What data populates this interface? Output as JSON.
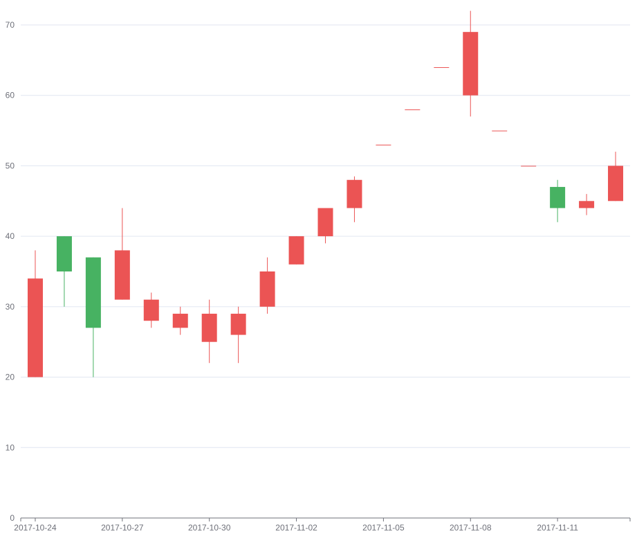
{
  "chart_data": {
    "type": "candlestick",
    "x_tick_labels": [
      "2017-10-24",
      "2017-10-27",
      "2017-10-30",
      "2017-11-02",
      "2017-11-05",
      "2017-11-08",
      "2017-11-11"
    ],
    "y_tick_labels": [
      "0",
      "10",
      "20",
      "30",
      "40",
      "50",
      "60",
      "70"
    ],
    "ylim": [
      0,
      70
    ],
    "grid": true,
    "colors": {
      "up": "#eb5454",
      "down": "#47b262",
      "grid": "#e0e6f1",
      "axis": "#6e7079"
    },
    "series": [
      {
        "date": "2017-10-24",
        "open": 20,
        "close": 34,
        "low": 20,
        "high": 38
      },
      {
        "date": "2017-10-25",
        "open": 40,
        "close": 35,
        "low": 30,
        "high": 40
      },
      {
        "date": "2017-10-26",
        "open": 37,
        "close": 27,
        "low": 20,
        "high": 37
      },
      {
        "date": "2017-10-27",
        "open": 31,
        "close": 38,
        "low": 31,
        "high": 44
      },
      {
        "date": "2017-10-28",
        "open": 28,
        "close": 31,
        "low": 27,
        "high": 32
      },
      {
        "date": "2017-10-29",
        "open": 27,
        "close": 29,
        "low": 26,
        "high": 30
      },
      {
        "date": "2017-10-30",
        "open": 25,
        "close": 29,
        "low": 22,
        "high": 31
      },
      {
        "date": "2017-10-31",
        "open": 26,
        "close": 29,
        "low": 22,
        "high": 30
      },
      {
        "date": "2017-11-01",
        "open": 30,
        "close": 35,
        "low": 29,
        "high": 37
      },
      {
        "date": "2017-11-02",
        "open": 36,
        "close": 40,
        "low": 36,
        "high": 40
      },
      {
        "date": "2017-11-03",
        "open": 40,
        "close": 44,
        "low": 39,
        "high": 44
      },
      {
        "date": "2017-11-04",
        "open": 44,
        "close": 48,
        "low": 42,
        "high": 48.5
      },
      {
        "date": "2017-11-05",
        "open": 53,
        "close": 53,
        "low": 53,
        "high": 53
      },
      {
        "date": "2017-11-06",
        "open": 58,
        "close": 58,
        "low": 58,
        "high": 58
      },
      {
        "date": "2017-11-07",
        "open": 64,
        "close": 64,
        "low": 64,
        "high": 64
      },
      {
        "date": "2017-11-08",
        "open": 60,
        "close": 69,
        "low": 57,
        "high": 72
      },
      {
        "date": "2017-11-09",
        "open": 55,
        "close": 55,
        "low": 55,
        "high": 55
      },
      {
        "date": "2017-11-10",
        "open": 50,
        "close": 50,
        "low": 50,
        "high": 50
      },
      {
        "date": "2017-11-11",
        "open": 47,
        "close": 44,
        "low": 42,
        "high": 48
      },
      {
        "date": "2017-11-12",
        "open": 44,
        "close": 45,
        "low": 43,
        "high": 46
      },
      {
        "date": "2017-11-13",
        "open": 45,
        "close": 50,
        "low": 45,
        "high": 52
      }
    ]
  }
}
